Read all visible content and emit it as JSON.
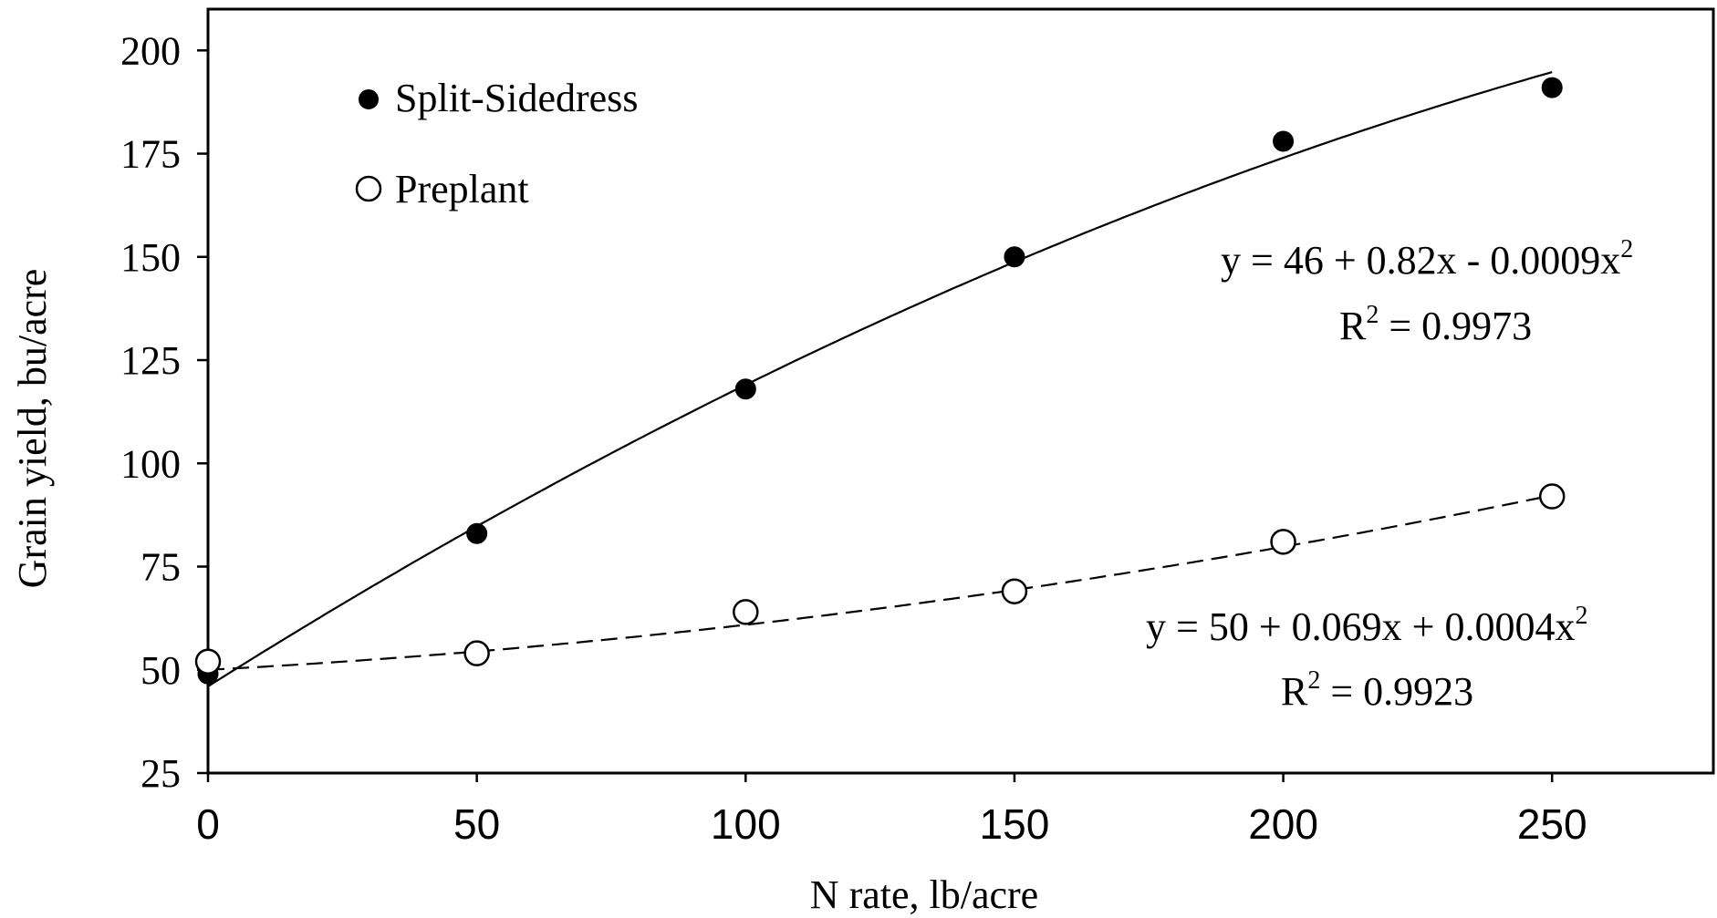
{
  "chart_data": {
    "type": "scatter",
    "xlabel": "N rate, lb/acre",
    "ylabel": "Grain yield, bu/acre",
    "xlim": [
      0,
      280
    ],
    "ylim": [
      25,
      210
    ],
    "x_ticks": [
      0,
      50,
      100,
      150,
      200,
      250
    ],
    "y_ticks": [
      25,
      50,
      75,
      100,
      125,
      150,
      175,
      200
    ],
    "grid": false,
    "legend_position": "top-left",
    "series": [
      {
        "name": "Split-Sidedress",
        "marker": "filled-circle",
        "line_style": "solid",
        "x": [
          0,
          50,
          100,
          150,
          200,
          250
        ],
        "y": [
          49,
          83,
          118,
          150,
          178,
          191
        ],
        "fit": {
          "a": 46,
          "b": 0.82,
          "c": -0.0009
        },
        "equation": "y = 46 + 0.82x - 0.0009x",
        "r2_label": "R",
        "r2_value": " = 0.9973"
      },
      {
        "name": "Preplant",
        "marker": "open-circle",
        "line_style": "dashed",
        "x": [
          0,
          50,
          100,
          150,
          200,
          250
        ],
        "y": [
          52,
          54,
          64,
          69,
          81,
          92
        ],
        "fit": {
          "a": 50,
          "b": 0.069,
          "c": 0.0004
        },
        "equation": "y = 50 + 0.069x + 0.0004x",
        "r2_label": "R",
        "r2_value": " = 0.9923"
      }
    ],
    "superscript": "2",
    "colors": {
      "ink": "#000000",
      "background": "#ffffff"
    }
  }
}
